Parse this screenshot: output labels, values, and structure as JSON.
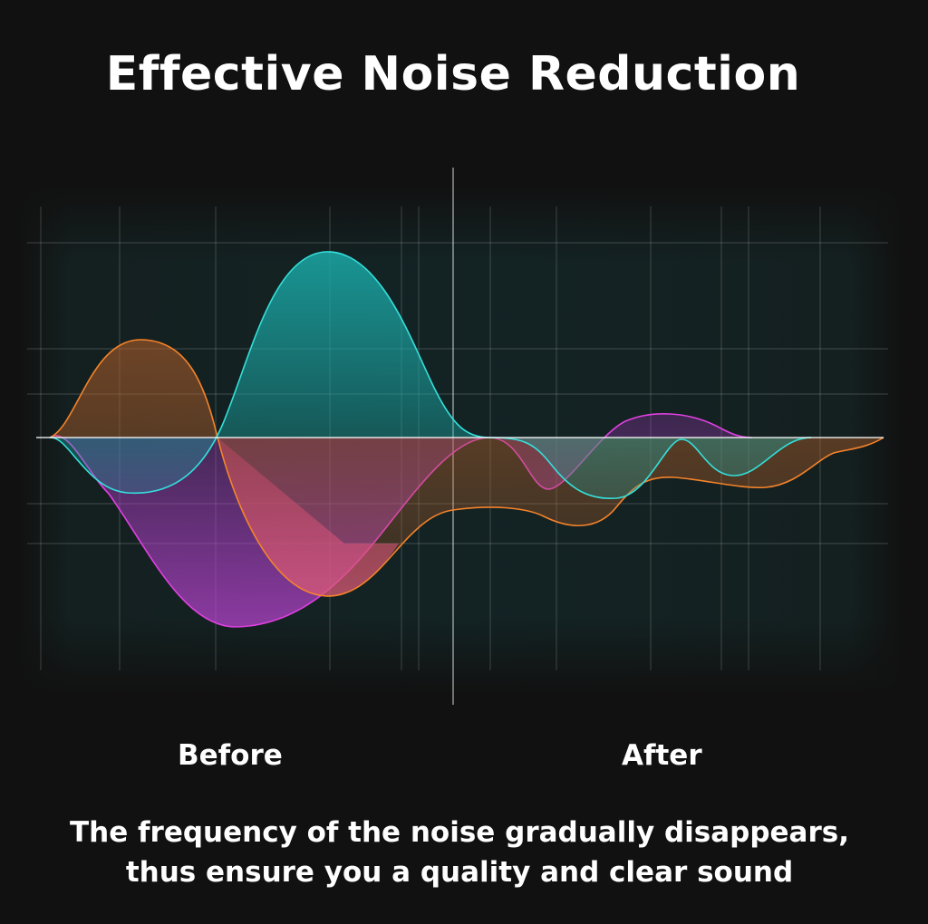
{
  "header": {
    "title": "Effective Noise Reduction"
  },
  "labels": {
    "before": "Before",
    "after": "After"
  },
  "caption": {
    "line1": "The frequency of the noise gradually disappears,",
    "line2": "thus ensure you a quality and clear sound"
  },
  "colors": {
    "background": "#111111",
    "orange_wave": "#f5832a",
    "cyan_wave": "#34e0dc",
    "magenta_wave": "#e040e0",
    "grid": "#ffffff"
  }
}
